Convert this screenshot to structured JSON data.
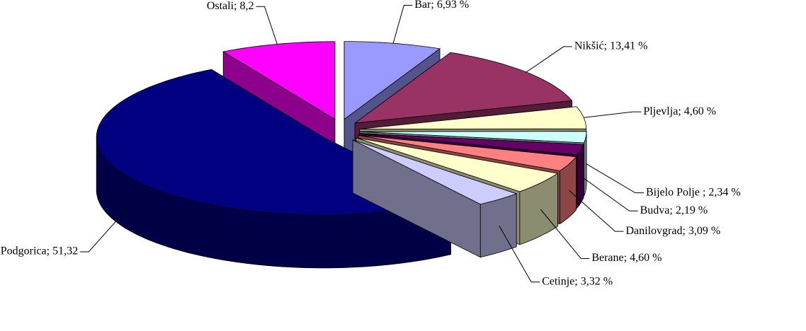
{
  "chart_data": {
    "type": "pie3d",
    "values": [
      6.93,
      13.41,
      4.6,
      2.34,
      2.19,
      3.09,
      4.6,
      3.32,
      51.32,
      8.2
    ],
    "value_labels": [
      "Bar; 6,93 %",
      "Nikšić; 13,41 %",
      "Pljevlja; 4,60 %",
      "Bijelo Polje ; 2,34 %",
      "Budva; 2,19 %",
      "Danilovgrad; 3,09 %",
      "Berane; 4,60 %",
      "Cetinje; 3,32 %",
      "Podgorica; 51,32",
      "Ostali; 8,2"
    ],
    "colors": [
      "#9999ff",
      "#993366",
      "#ffffcc",
      "#ccffff",
      "#660066",
      "#ff8080",
      "#ffffcc",
      "#ccccff",
      "#000080",
      "#ff00ff"
    ]
  }
}
